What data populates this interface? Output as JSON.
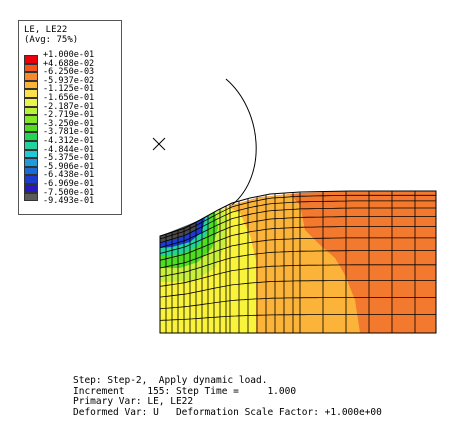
{
  "legend": {
    "title_line1": "LE, LE22",
    "title_line2": "(Avg: 75%)",
    "entries": [
      {
        "label": "+1.000e-01",
        "color": "#e8000b"
      },
      {
        "label": "+4.688e-02",
        "color": "#f5561f"
      },
      {
        "label": "-6.250e-03",
        "color": "#f98a2b"
      },
      {
        "label": "-5.937e-02",
        "color": "#fbb33a"
      },
      {
        "label": "-1.125e-01",
        "color": "#fde04a"
      },
      {
        "label": "-1.656e-01",
        "color": "#e9f54b"
      },
      {
        "label": "-2.187e-01",
        "color": "#bdf03a"
      },
      {
        "label": "-2.719e-01",
        "color": "#86e62a"
      },
      {
        "label": "-3.250e-01",
        "color": "#4fdc22"
      },
      {
        "label": "-3.781e-01",
        "color": "#25d654"
      },
      {
        "label": "-4.312e-01",
        "color": "#22d49b"
      },
      {
        "label": "-4.844e-01",
        "color": "#20c9d7"
      },
      {
        "label": "-5.375e-01",
        "color": "#1d9cdc"
      },
      {
        "label": "-5.906e-01",
        "color": "#1a6cd5"
      },
      {
        "label": "-6.438e-01",
        "color": "#1d3bd1"
      },
      {
        "label": "-6.969e-01",
        "color": "#2718c2"
      },
      {
        "label": "-7.500e-01",
        "color": "#5a5a5a"
      },
      {
        "label": "-9.493e-01",
        "color": "#5a5a5a"
      }
    ]
  },
  "info": {
    "step_line": "Step: Step-2,  Apply dynamic load.",
    "increment_line": "Increment    155: Step Time =     1.000",
    "primary_line": "Primary Var: LE, LE22",
    "deformed_line": "Deformed Var: U   Deformation Scale Factor: +1.000e+00"
  },
  "colors": {
    "orange": "#f2792e",
    "light_orange": "#fbb33a",
    "yellow": "#f9f33c",
    "green": "#4fdc22",
    "blue": "#1d3bd1",
    "dark": "#4a4a4a"
  }
}
